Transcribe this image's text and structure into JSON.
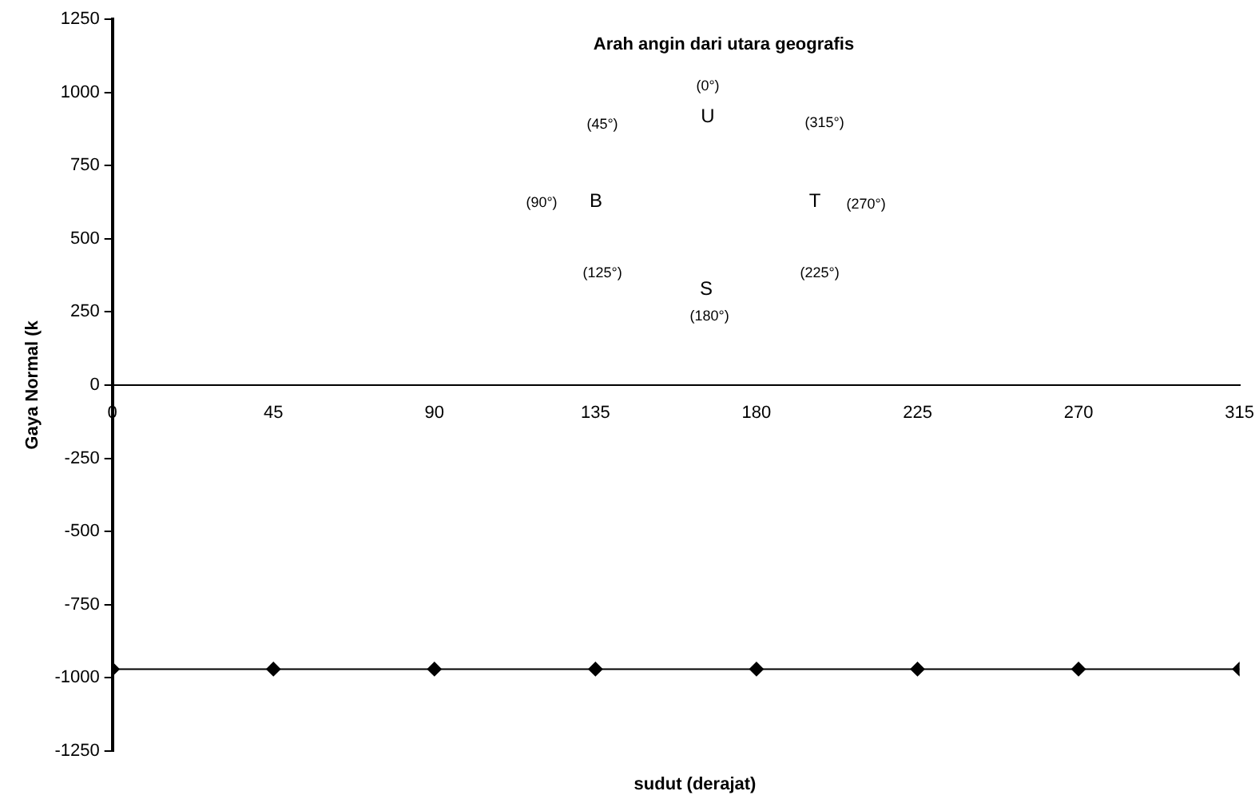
{
  "chart_data": {
    "type": "line",
    "title": "Arah angin dari utara geografis",
    "xlabel": "sudut (derajat)",
    "ylabel": "Gaya Normal (k",
    "x": [
      0,
      45,
      90,
      135,
      180,
      225,
      270,
      315
    ],
    "series": [
      {
        "color": "#000000",
        "values": [
          -970,
          -970,
          -970,
          -970,
          -970,
          -970,
          -970,
          -970
        ]
      }
    ],
    "xlim": [
      0,
      315
    ],
    "xticks": [
      0,
      45,
      90,
      135,
      180,
      225,
      270,
      315
    ],
    "ylim": [
      -1250,
      1250
    ],
    "yticks": [
      -1250,
      -1000,
      -750,
      -500,
      -250,
      0,
      250,
      500,
      750,
      1000,
      1250
    ],
    "grid": false,
    "legend": false,
    "marker": "diamond",
    "line_style": "solid",
    "annotations": [
      "(0°)",
      "U",
      "(45°)",
      "(315°)",
      "(90°)",
      "B",
      "T",
      "(270°)",
      "(125°)",
      "(225°)",
      "S",
      "(180°)"
    ]
  }
}
